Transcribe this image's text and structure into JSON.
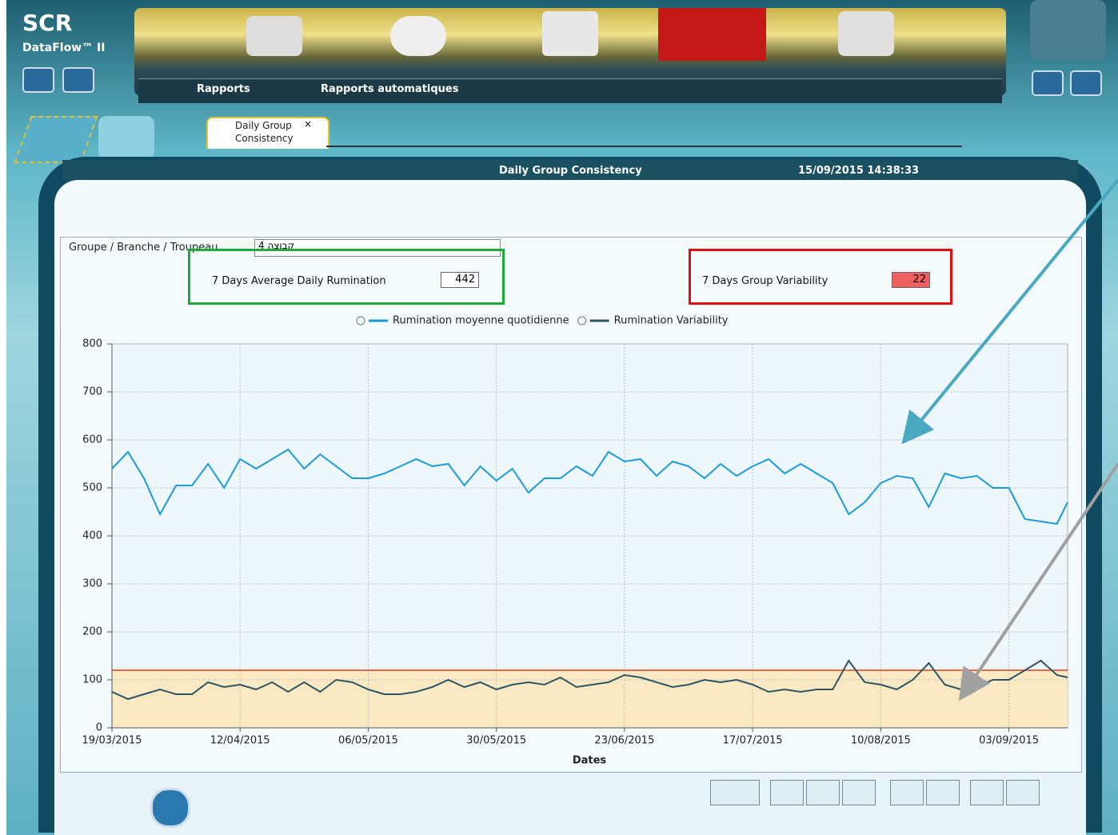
{
  "app": {
    "brand": "SCR",
    "product": "DataFlow™ II",
    "nav": [
      "Rapports",
      "Rapports automatiques"
    ]
  },
  "tab": {
    "title": "Daily Group Consistency"
  },
  "report": {
    "title": "Daily Group Consistency",
    "timestamp": "15/09/2015 14:38:33",
    "filter_label": "Groupe / Branche / Troupeau",
    "filter_value": "קבוצה 4",
    "kpis": [
      {
        "label": "7 Days Average Daily Rumination",
        "value": 442
      },
      {
        "label": "7 Days Group Variability",
        "value": 22
      }
    ]
  },
  "chart_data": {
    "type": "line",
    "x_label": "Dates",
    "x": [
      0,
      3,
      6,
      9,
      12,
      15,
      18,
      21,
      24,
      27,
      30,
      33,
      36,
      39,
      42,
      45,
      48,
      51,
      54,
      57,
      60,
      63,
      66,
      69,
      72,
      75,
      78,
      81,
      84,
      87,
      90,
      93,
      96,
      99,
      102,
      105,
      108,
      111,
      114,
      117,
      120,
      123,
      126,
      129,
      132,
      135,
      138,
      141,
      144,
      147,
      150,
      153,
      156,
      159,
      162,
      165,
      168,
      171,
      174,
      177,
      179
    ],
    "xlim": [
      0,
      179
    ],
    "xticks": [
      {
        "value": 0,
        "label": "19/03/2015"
      },
      {
        "value": 24,
        "label": "12/04/2015"
      },
      {
        "value": 48,
        "label": "06/05/2015"
      },
      {
        "value": 72,
        "label": "30/05/2015"
      },
      {
        "value": 96,
        "label": "23/06/2015"
      },
      {
        "value": 120,
        "label": "17/07/2015"
      },
      {
        "value": 144,
        "label": "10/08/2015"
      },
      {
        "value": 168,
        "label": "03/09/2015"
      }
    ],
    "ylim": [
      0,
      800
    ],
    "yticks": [
      0,
      100,
      200,
      300,
      400,
      500,
      600,
      700,
      800
    ],
    "grid": true,
    "limit": {
      "value": 120,
      "color": "#e04020",
      "fill": "#fbe9c4"
    },
    "series": [
      {
        "name": "Rumination moyenne quotidienne",
        "color": "#1a9ad8",
        "values": [
          540,
          575,
          520,
          445,
          505,
          505,
          550,
          500,
          560,
          540,
          560,
          580,
          540,
          570,
          545,
          520,
          520,
          530,
          545,
          560,
          545,
          550,
          505,
          545,
          515,
          540,
          490,
          520,
          520,
          545,
          525,
          575,
          555,
          560,
          525,
          555,
          545,
          520,
          550,
          525,
          545,
          560,
          530,
          550,
          530,
          510,
          445,
          470,
          510,
          525,
          520,
          460,
          530,
          520,
          525,
          500,
          500,
          435,
          430,
          425,
          470
        ]
      },
      {
        "name": "Rumination Variability",
        "color": "#2d5560",
        "values": [
          75,
          60,
          70,
          80,
          70,
          70,
          95,
          85,
          90,
          80,
          95,
          75,
          95,
          75,
          100,
          95,
          80,
          70,
          70,
          75,
          85,
          100,
          85,
          95,
          80,
          90,
          95,
          90,
          105,
          85,
          90,
          95,
          110,
          105,
          95,
          85,
          90,
          100,
          95,
          100,
          90,
          75,
          80,
          75,
          80,
          80,
          140,
          95,
          90,
          80,
          100,
          135,
          90,
          80,
          85,
          100,
          100,
          120,
          140,
          110,
          105
        ]
      }
    ]
  }
}
